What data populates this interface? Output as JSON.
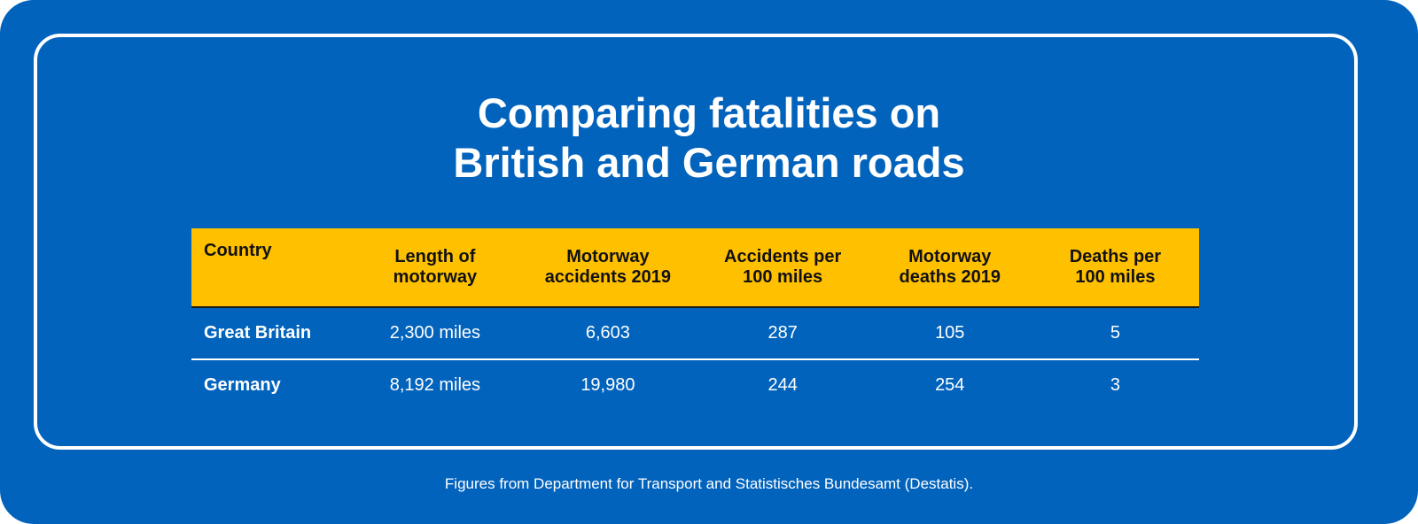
{
  "colors": {
    "background": "#0263BC",
    "header": "#FFC000",
    "text": "#FFFFFF",
    "header_text": "#111111"
  },
  "title": {
    "line1": "Comparing fatalities on",
    "line2": "British and German roads"
  },
  "table": {
    "headers": [
      "Country",
      "Length of motorway",
      "Motorway accidents 2019",
      "Accidents per 100 miles",
      "Motorway deaths 2019",
      "Deaths per 100 miles"
    ],
    "header_lines": [
      [
        "Country"
      ],
      [
        "Length of",
        "motorway"
      ],
      [
        "Motorway",
        "accidents 2019"
      ],
      [
        "Accidents per",
        "100 miles"
      ],
      [
        "Motorway",
        "deaths 2019"
      ],
      [
        "Deaths per",
        "100 miles"
      ]
    ],
    "rows": [
      [
        "Great Britain",
        "2,300 miles",
        "6,603",
        "287",
        "105",
        "5"
      ],
      [
        "Germany",
        "8,192 miles",
        "19,980",
        "244",
        "254",
        "3"
      ]
    ]
  },
  "footer": "Figures from Department for Transport and Statistisches Bundesamt (Destatis).",
  "chart_data": {
    "type": "table",
    "title": "Comparing fatalities on British and German roads",
    "columns": [
      "Country",
      "Length of motorway",
      "Motorway accidents 2019",
      "Accidents per 100 miles",
      "Motorway deaths 2019",
      "Deaths per 100 miles"
    ],
    "rows": [
      {
        "Country": "Great Britain",
        "Length of motorway": "2,300 miles",
        "Motorway accidents 2019": 6603,
        "Accidents per 100 miles": 287,
        "Motorway deaths 2019": 105,
        "Deaths per 100 miles": 5
      },
      {
        "Country": "Germany",
        "Length of motorway": "8,192 miles",
        "Motorway accidents 2019": 19980,
        "Accidents per 100 miles": 244,
        "Motorway deaths 2019": 254,
        "Deaths per 100 miles": 3
      }
    ],
    "annotations": [
      "Figures from Department for Transport and Statistisches Bundesamt (Destatis)."
    ]
  }
}
